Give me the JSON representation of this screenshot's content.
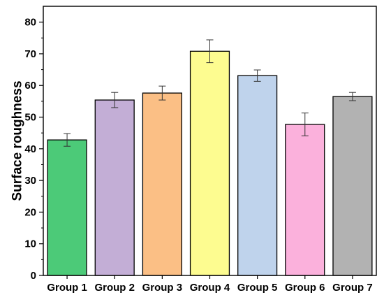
{
  "chart_data": {
    "type": "bar",
    "title": "",
    "xlabel": "",
    "ylabel": "Surface roughness",
    "ylim": [
      0,
      85
    ],
    "yticks": [
      0,
      10,
      20,
      30,
      40,
      50,
      60,
      70,
      80
    ],
    "categories": [
      "Group 1",
      "Group 2",
      "Group 3",
      "Group 4",
      "Group 5",
      "Group 6",
      "Group 7"
    ],
    "values": [
      42.8,
      55.4,
      57.6,
      70.8,
      63.1,
      47.7,
      56.5
    ],
    "errors": [
      2.0,
      2.4,
      2.2,
      3.6,
      1.8,
      3.6,
      1.3
    ],
    "colors": [
      "#4cca78",
      "#c3aed6",
      "#fbbf85",
      "#fdfc90",
      "#bfd3ec",
      "#fbb1dc",
      "#b2b2b2"
    ],
    "grid": false,
    "legend": "none"
  }
}
